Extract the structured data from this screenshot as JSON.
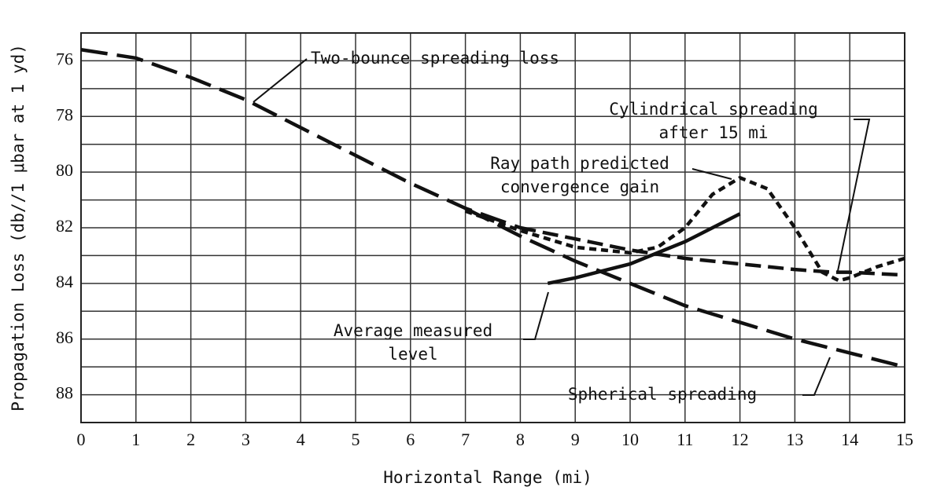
{
  "chart_data": {
    "type": "line",
    "xlabel": "Horizontal Range (mi)",
    "ylabel": "Propagation Loss (db//1 μbar at 1 yd)",
    "xlim": [
      0,
      15
    ],
    "xticks": [
      0,
      1,
      2,
      3,
      4,
      5,
      6,
      7,
      8,
      9,
      10,
      11,
      12,
      13,
      14,
      15
    ],
    "ylim": [
      75,
      89
    ],
    "yticks": [
      76,
      78,
      80,
      82,
      84,
      86,
      88
    ],
    "ygrid": [
      75,
      76,
      77,
      78,
      79,
      80,
      81,
      82,
      83,
      84,
      85,
      86,
      87,
      88,
      89
    ],
    "y_inverted": true,
    "grid": true,
    "series": [
      {
        "name": "Two-bounce spreading loss",
        "color": "#111111",
        "dash": "long",
        "x": [
          0,
          1,
          2,
          3,
          4,
          5,
          6,
          7,
          8
        ],
        "values": [
          75.6,
          75.9,
          76.6,
          77.4,
          78.4,
          79.4,
          80.4,
          81.3,
          82.0
        ]
      },
      {
        "name": "Spherical spreading",
        "color": "#111111",
        "dash": "long",
        "x": [
          7,
          8,
          9,
          10,
          11,
          12,
          13,
          14,
          15
        ],
        "values": [
          81.3,
          82.3,
          83.2,
          84.0,
          84.8,
          85.4,
          86.0,
          86.5,
          87.0
        ]
      },
      {
        "name": "Cylindrical spreading\nafter 15 mi",
        "color": "#111111",
        "dash": "medium",
        "x": [
          8,
          9,
          10,
          11,
          12,
          13,
          13.7,
          14,
          15
        ],
        "values": [
          82.0,
          82.4,
          82.8,
          83.1,
          83.3,
          83.5,
          83.6,
          83.6,
          83.7
        ]
      },
      {
        "name": "Ray path predicted\nconvergence gain",
        "color": "#111111",
        "dash": "short",
        "x": [
          7,
          8,
          9,
          10,
          10.5,
          11,
          11.5,
          12,
          12.5,
          13,
          13.5,
          13.8,
          14,
          14.5,
          15
        ],
        "values": [
          81.4,
          82.1,
          82.7,
          82.9,
          82.7,
          82.0,
          80.8,
          80.2,
          80.6,
          82.0,
          83.6,
          83.9,
          83.8,
          83.4,
          83.1
        ]
      },
      {
        "name": "Average measured\nlevel",
        "color": "#111111",
        "dash": "solid",
        "x": [
          8.5,
          9,
          10,
          10.5,
          11,
          11.5,
          12
        ],
        "values": [
          84.0,
          83.8,
          83.3,
          82.9,
          82.5,
          82.0,
          81.5
        ]
      }
    ]
  }
}
